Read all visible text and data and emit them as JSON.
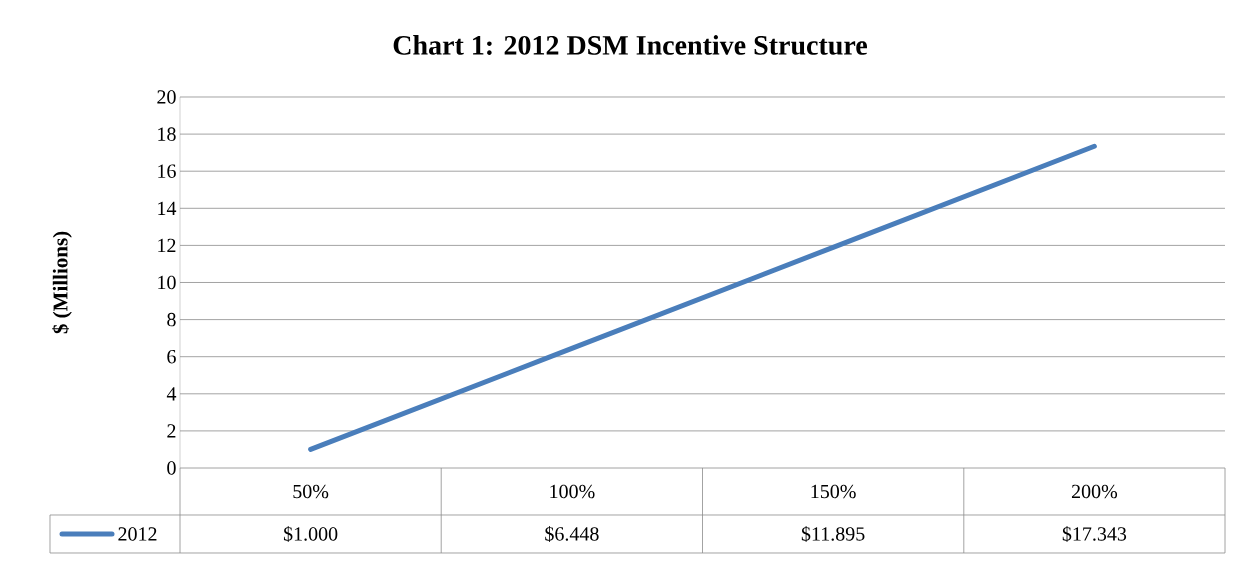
{
  "chart_data": {
    "type": "line",
    "title": "Chart 1: 2012 DSM Incentive Structure",
    "ylabel": "$ (Millions)",
    "categories": [
      "50%",
      "100%",
      "150%",
      "200%"
    ],
    "series": [
      {
        "name": "2012",
        "color": "#4a7ebb",
        "values": [
          1.0,
          6.448,
          11.895,
          17.343
        ],
        "value_labels": [
          "$1.000",
          "$6.448",
          "$11.895",
          "$17.343"
        ]
      }
    ],
    "ylim": [
      0,
      20
    ],
    "yticks": [
      0,
      2,
      4,
      6,
      8,
      10,
      12,
      14,
      16,
      18,
      20
    ],
    "grid": "y",
    "legend": "bottom",
    "marker": "none",
    "line_style": "solid"
  }
}
